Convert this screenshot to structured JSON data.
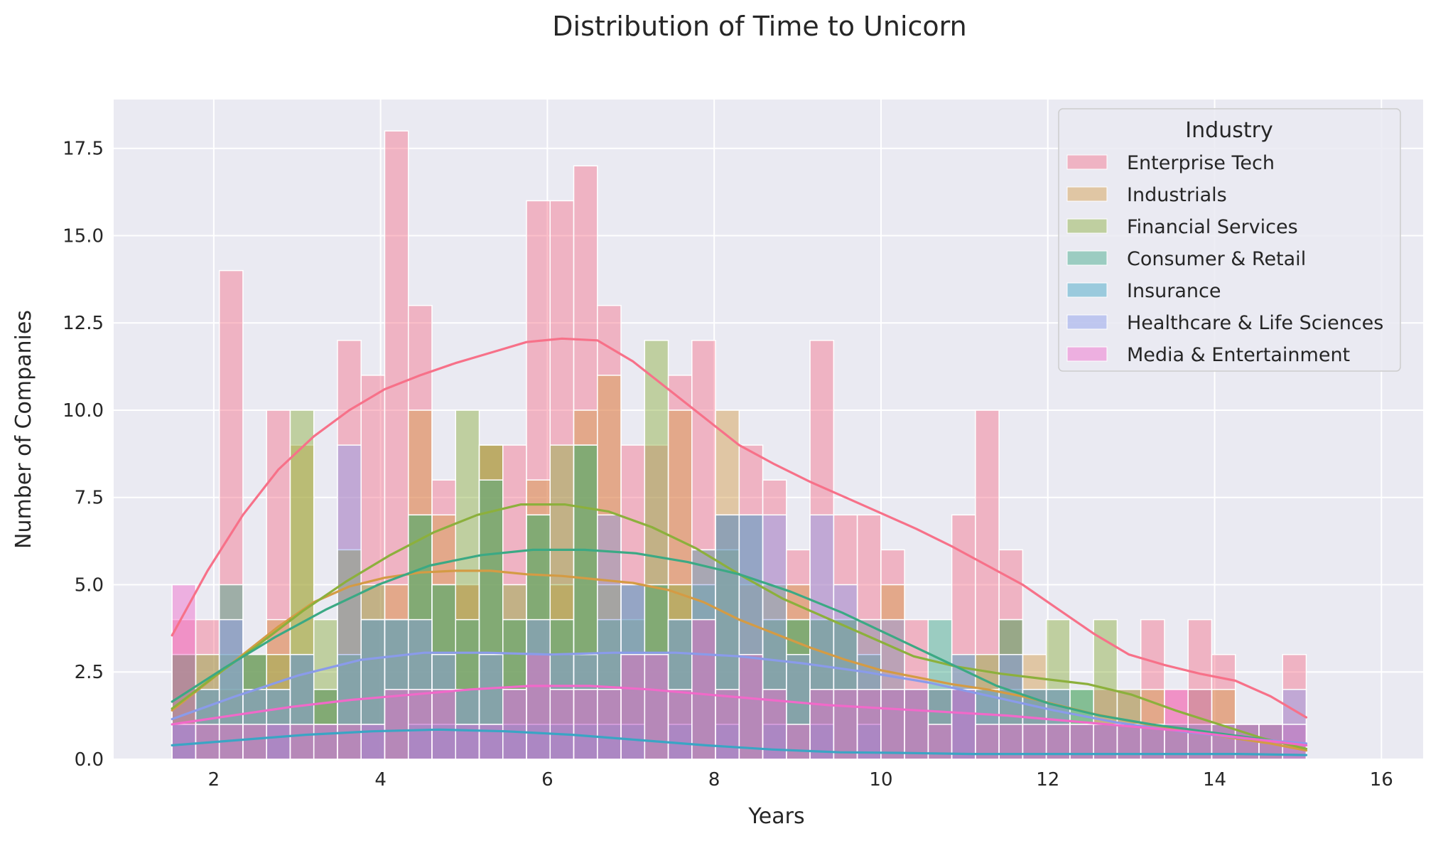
{
  "chart_data": {
    "type": "bar",
    "title": "Distribution of Time to Unicorn",
    "xlabel": "Years",
    "ylabel": "Number of Companies",
    "xlim": [
      0.8,
      16.5
    ],
    "ylim": [
      0,
      18.9
    ],
    "xticks": [
      2,
      4,
      6,
      8,
      10,
      12,
      14,
      16
    ],
    "yticks": [
      0.0,
      2.5,
      5.0,
      7.5,
      10.0,
      12.5,
      15.0,
      17.5
    ],
    "ytick_labels": [
      "0.0",
      "2.5",
      "5.0",
      "7.5",
      "10.0",
      "12.5",
      "15.0",
      "17.5"
    ],
    "grid": true,
    "legend_title": "Industry",
    "legend_position": "upper right",
    "bin_start": 1.5,
    "bin_width": 0.2833,
    "series": [
      {
        "name": "Enterprise Tech",
        "color": "#f77189",
        "counts": [
          4,
          4,
          14,
          3,
          10,
          3,
          2,
          12,
          11,
          18,
          13,
          8,
          5,
          9,
          9,
          16,
          16,
          17,
          13,
          9,
          9,
          11,
          12,
          7,
          9,
          8,
          6,
          12,
          7,
          7,
          6,
          4,
          2,
          7,
          10,
          6,
          2,
          1,
          1,
          2,
          2,
          4,
          2,
          4,
          3,
          1,
          1,
          3
        ],
        "kde": [
          3.55,
          5.4,
          7.0,
          8.3,
          9.25,
          10.0,
          10.6,
          11.0,
          11.35,
          11.65,
          11.95,
          12.05,
          12.0,
          11.4,
          10.6,
          9.8,
          9.0,
          8.45,
          7.95,
          7.5,
          7.05,
          6.6,
          6.1,
          5.55,
          5.0,
          4.3,
          3.6,
          3.0,
          2.7,
          2.45,
          2.25,
          1.8,
          1.2
        ]
      },
      {
        "name": "Industrials",
        "color": "#d49b44",
        "counts": [
          3,
          2,
          2,
          3,
          4,
          9,
          2,
          6,
          4,
          5,
          10,
          7,
          5,
          9,
          4,
          8,
          5,
          10,
          11,
          3,
          5,
          10,
          4,
          10,
          5,
          4,
          5,
          4,
          4,
          4,
          5,
          2,
          2,
          2,
          1,
          4,
          3,
          2,
          1,
          1,
          1,
          2,
          1,
          1,
          2,
          1,
          1,
          0
        ],
        "kde": [
          1.4,
          2.2,
          3.0,
          3.8,
          4.5,
          4.95,
          5.2,
          5.35,
          5.4,
          5.4,
          5.3,
          5.25,
          5.15,
          5.05,
          4.85,
          4.5,
          4.0,
          3.6,
          3.2,
          2.85,
          2.55,
          2.35,
          2.15,
          2.0,
          1.8,
          1.55,
          1.3,
          1.1,
          0.9,
          0.75,
          0.6,
          0.45,
          0.25
        ]
      },
      {
        "name": "Financial Services",
        "color": "#8cb03c",
        "counts": [
          3,
          3,
          3,
          3,
          3,
          10,
          4,
          6,
          5,
          4,
          7,
          5,
          10,
          9,
          5,
          7,
          9,
          9,
          5,
          4,
          12,
          5,
          6,
          6,
          3,
          5,
          4,
          4,
          4,
          2,
          2,
          2,
          2,
          2,
          3,
          2,
          2,
          4,
          2,
          4,
          2,
          1,
          1,
          2,
          1,
          1,
          1,
          0
        ],
        "kde": [
          1.45,
          2.4,
          3.3,
          4.25,
          5.1,
          5.85,
          6.5,
          7.0,
          7.3,
          7.3,
          7.1,
          6.65,
          6.05,
          5.3,
          4.6,
          4.05,
          3.5,
          2.95,
          2.65,
          2.45,
          2.3,
          2.15,
          1.85,
          1.4,
          1.0,
          0.6,
          0.3
        ]
      },
      {
        "name": "Consumer & Retail",
        "color": "#3ba984",
        "counts": [
          3,
          2,
          5,
          3,
          2,
          3,
          2,
          3,
          4,
          4,
          7,
          5,
          4,
          8,
          4,
          7,
          4,
          9,
          4,
          5,
          5,
          4,
          5,
          7,
          7,
          4,
          4,
          4,
          4,
          3,
          2,
          2,
          4,
          2,
          2,
          4,
          2,
          2,
          2,
          1,
          1,
          1,
          1,
          1,
          1,
          1,
          1,
          1
        ],
        "kde": [
          1.65,
          2.6,
          3.5,
          4.3,
          5.0,
          5.55,
          5.85,
          6.0,
          6.0,
          5.9,
          5.65,
          5.3,
          4.8,
          4.2,
          3.5,
          2.8,
          2.1,
          1.6,
          1.25,
          1.0,
          0.8,
          0.6,
          0.4
        ]
      },
      {
        "name": "Insurance",
        "color": "#3aa5c4",
        "counts": [
          1,
          0,
          0,
          0,
          1,
          0,
          0,
          0,
          1,
          0,
          1,
          1,
          1,
          1,
          1,
          1,
          1,
          1,
          1,
          1,
          0,
          1,
          0,
          1,
          0,
          1,
          0,
          1,
          0,
          1,
          0,
          0,
          0,
          3,
          0,
          0,
          0,
          0,
          0,
          0,
          0,
          0,
          0,
          0,
          0,
          0,
          0,
          0
        ],
        "kde": [
          0.4,
          0.55,
          0.7,
          0.8,
          0.85,
          0.8,
          0.7,
          0.55,
          0.4,
          0.28,
          0.2,
          0.18,
          0.15,
          0.15,
          0.15,
          0.15,
          0.15,
          0.12
        ]
      },
      {
        "name": "Healthcare & Life Sciences",
        "color": "#8a9bea",
        "counts": [
          1,
          2,
          4,
          2,
          2,
          3,
          1,
          9,
          4,
          4,
          4,
          3,
          2,
          3,
          2,
          4,
          3,
          3,
          7,
          5,
          3,
          4,
          6,
          7,
          7,
          7,
          3,
          7,
          5,
          4,
          4,
          2,
          2,
          2,
          2,
          3,
          2,
          2,
          1,
          1,
          1,
          1,
          1,
          1,
          1,
          1,
          1,
          2
        ],
        "kde": [
          1.15,
          1.8,
          2.4,
          2.85,
          3.05,
          3.05,
          3.0,
          3.05,
          3.05,
          2.95,
          2.75,
          2.5,
          2.2,
          1.8,
          1.4,
          1.05,
          0.8,
          0.6,
          0.45
        ]
      },
      {
        "name": "Media & Entertainment",
        "color": "#f169c9",
        "counts": [
          5,
          1,
          1,
          1,
          1,
          1,
          1,
          1,
          1,
          2,
          2,
          2,
          1,
          1,
          2,
          3,
          2,
          2,
          2,
          3,
          3,
          2,
          4,
          2,
          3,
          2,
          1,
          2,
          2,
          2,
          2,
          2,
          1,
          2,
          1,
          1,
          1,
          1,
          1,
          1,
          1,
          1,
          2,
          2,
          1,
          1,
          1,
          1
        ],
        "kde": [
          1.0,
          1.25,
          1.5,
          1.7,
          1.85,
          2.0,
          2.1,
          2.1,
          2.0,
          1.85,
          1.7,
          1.55,
          1.45,
          1.35,
          1.25,
          1.1,
          0.95,
          0.8,
          0.6,
          0.4
        ]
      }
    ]
  }
}
